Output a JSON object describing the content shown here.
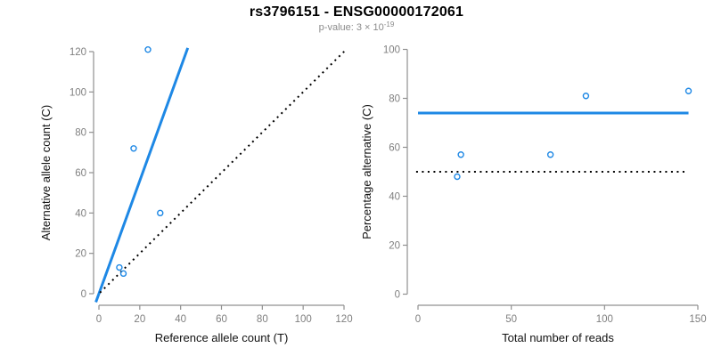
{
  "header": {
    "title": "rs3796151 - ENSG00000172061",
    "subtitle_prefix": "p-value: 3 × 10",
    "subtitle_exponent": "-19"
  },
  "colors": {
    "accent_blue": "#1E88E5",
    "axis_line": "#909090",
    "tick_label": "#7F7F7F",
    "axis_title": "#111111",
    "title_black": "#000000",
    "subtitle_gray": "#8C8C8C"
  },
  "chart_data": [
    {
      "type": "scatter",
      "title": "rs3796151 - ENSG00000172061",
      "xlabel": "Reference allele count (T)",
      "ylabel": "Alternative allele count (C)",
      "xlim": [
        0,
        120
      ],
      "ylim": [
        0,
        120
      ],
      "xticks": [
        0,
        20,
        40,
        60,
        80,
        100,
        120
      ],
      "yticks": [
        0,
        20,
        40,
        60,
        80,
        100,
        120
      ],
      "grid": false,
      "legend": null,
      "points": [
        [
          10,
          13
        ],
        [
          12,
          10
        ],
        [
          17,
          72
        ],
        [
          24,
          121
        ],
        [
          30,
          40
        ]
      ],
      "lines": [
        {
          "name": "fit-line",
          "style": "solid",
          "color": "#1E88E5",
          "width": 3,
          "slope": 2.8,
          "intercept": 0,
          "x_draw_range": [
            -1.5,
            43.5
          ]
        },
        {
          "name": "identity-line",
          "style": "dotted",
          "color": "#000000",
          "width": 2,
          "slope": 1,
          "intercept": 0,
          "x_draw_range": [
            0.5,
            120.5
          ]
        }
      ]
    },
    {
      "type": "scatter",
      "title": "",
      "xlabel": "Total number of reads",
      "ylabel": "Percentage alternative (C)",
      "xlim": [
        0,
        150
      ],
      "ylim": [
        0,
        100
      ],
      "xticks": [
        0,
        50,
        100,
        150
      ],
      "yticks": [
        0,
        20,
        40,
        60,
        80,
        100
      ],
      "grid": false,
      "legend": null,
      "points": [
        [
          21,
          48
        ],
        [
          23,
          57
        ],
        [
          71,
          57
        ],
        [
          90,
          81
        ],
        [
          145,
          83
        ]
      ],
      "lines": [
        {
          "name": "fit-line",
          "style": "solid",
          "color": "#1E88E5",
          "width": 3,
          "slope": 0,
          "intercept": 74,
          "x_draw_range": [
            0,
            145
          ]
        },
        {
          "name": "reference-line",
          "style": "dotted",
          "color": "#000000",
          "width": 2,
          "slope": 0,
          "intercept": 50,
          "x_draw_range": [
            -1,
            144
          ]
        }
      ]
    }
  ]
}
